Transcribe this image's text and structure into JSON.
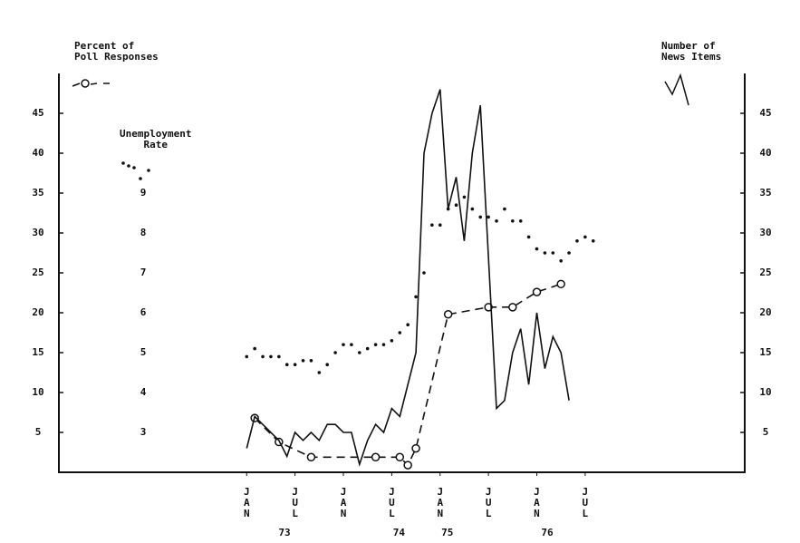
{
  "chart_data": {
    "type": "line",
    "series": [
      {
        "name": "Percent of\nPoll Responses",
        "color": "#111",
        "style": "dashed-circles",
        "axis": "y",
        "x": [
          1,
          4,
          8,
          16,
          19,
          20,
          21,
          25,
          30,
          33,
          36,
          39
        ],
        "values": [
          6.8,
          3.8,
          1.9,
          1.9,
          1.9,
          0.9,
          3,
          19.8,
          20.7,
          20.7,
          22.6,
          23.6
        ]
      },
      {
        "name": "Unemployment\nRate",
        "color": "#111",
        "style": "dots",
        "axis": "u",
        "x": [
          0,
          1,
          2,
          3,
          4,
          5,
          6,
          7,
          8,
          9,
          10,
          11,
          12,
          13,
          14,
          15,
          16,
          17,
          18,
          19,
          20,
          21,
          22,
          23,
          24,
          25,
          26,
          27,
          28,
          29,
          30,
          31,
          32,
          33,
          34,
          35,
          36,
          37,
          38,
          39,
          40,
          41,
          42,
          43
        ],
        "values": [
          4.9,
          5.1,
          4.9,
          4.9,
          4.9,
          4.7,
          4.7,
          4.8,
          4.8,
          4.5,
          4.7,
          5.0,
          5.2,
          5.2,
          5.0,
          5.1,
          5.2,
          5.2,
          5.3,
          5.5,
          5.7,
          6.4,
          7.0,
          8.2,
          8.2,
          8.6,
          8.7,
          8.9,
          8.6,
          8.4,
          8.4,
          8.3,
          8.6,
          8.3,
          8.3,
          7.9,
          7.6,
          7.5,
          7.5,
          7.3,
          7.5,
          7.8,
          7.9,
          7.8
        ]
      },
      {
        "name": "Number of\nNews Items",
        "color": "#111",
        "style": "solid",
        "axis": "y2",
        "x": [
          0,
          1,
          4,
          5,
          6,
          7,
          8,
          9,
          10,
          11,
          12,
          13,
          14,
          15,
          16,
          17,
          18,
          19,
          21,
          22,
          23,
          24,
          25,
          26,
          27,
          28,
          29,
          31,
          32,
          33,
          34,
          35,
          36,
          37,
          38,
          39,
          40
        ],
        "values": [
          3,
          7,
          4,
          2,
          5,
          4,
          5,
          4,
          6,
          6,
          5,
          5,
          1,
          4,
          6,
          5,
          8,
          7,
          15,
          40,
          45,
          48,
          33,
          37,
          29,
          40,
          46,
          8,
          9,
          15,
          18,
          11,
          20,
          13,
          17,
          15,
          9
        ]
      }
    ],
    "xlim": [
      -23.3,
      61.8
    ],
    "xticks": [
      {
        "value": 0,
        "label": "JAN"
      },
      {
        "value": 6,
        "label": "JUL"
      },
      {
        "value": 12,
        "label": "JAN"
      },
      {
        "value": 18,
        "label": "JUL"
      },
      {
        "value": 24,
        "label": "JAN"
      },
      {
        "value": 30,
        "label": "JUL"
      },
      {
        "value": 36,
        "label": "JAN"
      },
      {
        "value": 42,
        "label": "JUL"
      }
    ],
    "year_labels": [
      {
        "value": 4.7,
        "label": "73"
      },
      {
        "value": 18.9,
        "label": "74"
      },
      {
        "value": 24.9,
        "label": "75"
      },
      {
        "value": 37.3,
        "label": "76"
      }
    ],
    "ylim": [
      0,
      50
    ],
    "yticks": [
      5,
      10,
      15,
      20,
      25,
      30,
      35,
      40,
      45
    ],
    "y2lim": [
      0,
      50
    ],
    "y2ticks": [
      5,
      10,
      15,
      20,
      25,
      30,
      35,
      40,
      45
    ],
    "ulim": [
      2,
      12
    ],
    "uticks": [
      3,
      4,
      5,
      6,
      7,
      8,
      9
    ]
  }
}
